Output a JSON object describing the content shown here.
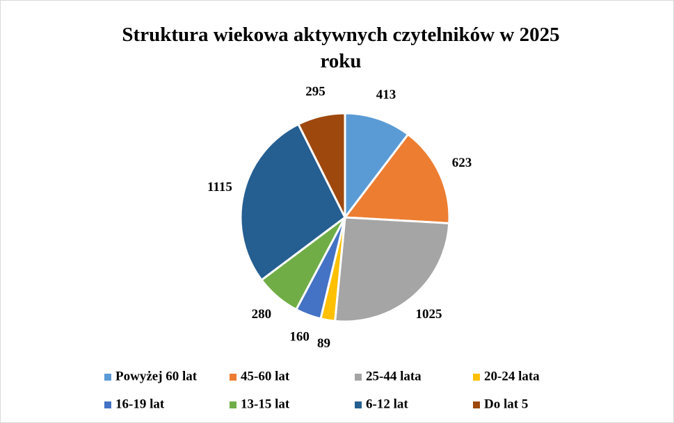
{
  "chart_data": {
    "type": "pie",
    "title": "Struktura wiekowa aktywnych czytelników w 2025 roku",
    "categories": [
      "Powyżej 60 lat",
      "45-60 lat",
      "25-44 lata",
      "20-24 lata",
      "16-19 lat",
      "13-15 lat",
      "6-12 lat",
      "Do lat 5"
    ],
    "values": [
      413,
      623,
      1025,
      89,
      160,
      280,
      1115,
      295
    ],
    "colors": [
      "#5b9bd5",
      "#ed7d31",
      "#a5a5a5",
      "#ffc000",
      "#4472c4",
      "#70ad47",
      "#255e91",
      "#9e480e"
    ],
    "legend": "bottom"
  }
}
